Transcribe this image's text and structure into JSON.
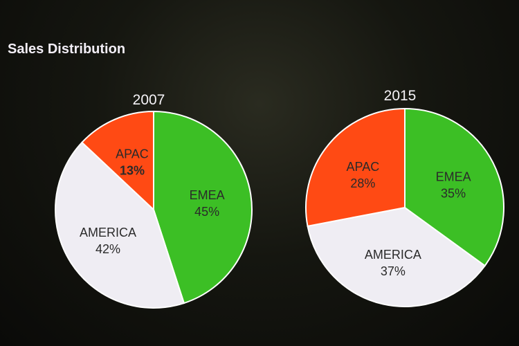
{
  "title": "Sales Distribution",
  "chart_data": [
    {
      "type": "pie",
      "title": "2007",
      "slices": [
        {
          "label": "EMEA",
          "value": 45,
          "text": "45%",
          "color": "#3cbf25",
          "bold": false
        },
        {
          "label": "AMERICA",
          "value": 42,
          "text": "42%",
          "color": "#efedf3",
          "bold": false
        },
        {
          "label": "APAC",
          "value": 13,
          "text": "13%",
          "color": "#ff4a14",
          "bold": true
        }
      ]
    },
    {
      "type": "pie",
      "title": "2015",
      "slices": [
        {
          "label": "EMEA",
          "value": 35,
          "text": "35%",
          "color": "#3cbf25",
          "bold": false
        },
        {
          "label": "AMERICA",
          "value": 37,
          "text": "37%",
          "color": "#efedf3",
          "bold": false
        },
        {
          "label": "APAC",
          "value": 28,
          "text": "28%",
          "color": "#ff4a14",
          "bold": false
        }
      ]
    }
  ]
}
